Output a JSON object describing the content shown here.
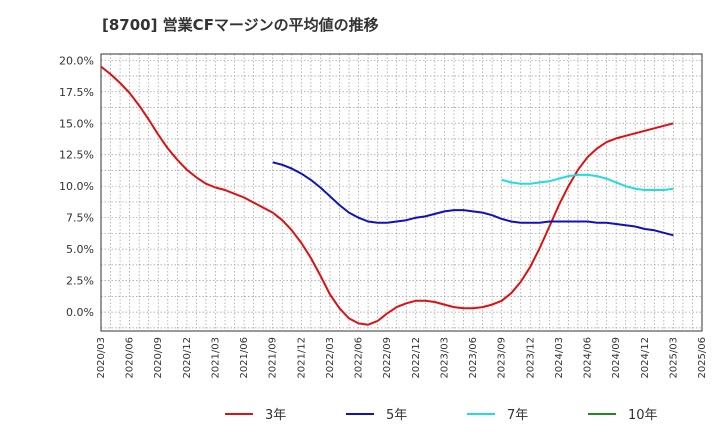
{
  "chart_data": {
    "type": "line",
    "title": "[8700]  営業CFマージンの平均値の推移",
    "xlabel": "",
    "ylabel": "",
    "ylim": [
      -1.5,
      20.5
    ],
    "y_ticks": [
      "20.0%",
      "17.5%",
      "15.0%",
      "12.5%",
      "10.0%",
      "7.5%",
      "5.0%",
      "2.5%",
      "0.0%"
    ],
    "y_tick_values": [
      20.0,
      17.5,
      15.0,
      12.5,
      10.0,
      7.5,
      5.0,
      2.5,
      0.0
    ],
    "x_ticks": [
      "2020/03",
      "2020/06",
      "2020/09",
      "2020/12",
      "2021/03",
      "2021/06",
      "2021/09",
      "2021/12",
      "2022/03",
      "2022/06",
      "2022/09",
      "2022/12",
      "2023/03",
      "2023/06",
      "2023/09",
      "2023/12",
      "2024/03",
      "2024/06",
      "2024/09",
      "2024/12",
      "2025/03",
      "2025/06"
    ],
    "grid": true,
    "legend_position": "bottom",
    "series": [
      {
        "name": "3年",
        "color": "#dd1111",
        "points": [
          [
            "2020/03",
            19.5
          ],
          [
            "2020/04",
            18.9
          ],
          [
            "2020/05",
            18.2
          ],
          [
            "2020/06",
            17.4
          ],
          [
            "2020/07",
            16.4
          ],
          [
            "2020/08",
            15.3
          ],
          [
            "2020/09",
            14.1
          ],
          [
            "2020/10",
            13.0
          ],
          [
            "2020/11",
            12.1
          ],
          [
            "2020/12",
            11.3
          ],
          [
            "2021/01",
            10.7
          ],
          [
            "2021/02",
            10.2
          ],
          [
            "2021/03",
            9.9
          ],
          [
            "2021/04",
            9.7
          ],
          [
            "2021/05",
            9.4
          ],
          [
            "2021/06",
            9.1
          ],
          [
            "2021/07",
            8.7
          ],
          [
            "2021/08",
            8.3
          ],
          [
            "2021/09",
            7.9
          ],
          [
            "2021/10",
            7.3
          ],
          [
            "2021/11",
            6.5
          ],
          [
            "2021/12",
            5.5
          ],
          [
            "2022/01",
            4.3
          ],
          [
            "2022/02",
            2.9
          ],
          [
            "2022/03",
            1.4
          ],
          [
            "2022/04",
            0.3
          ],
          [
            "2022/05",
            -0.5
          ],
          [
            "2022/06",
            -0.9
          ],
          [
            "2022/07",
            -1.0
          ],
          [
            "2022/08",
            -0.7
          ],
          [
            "2022/09",
            -0.1
          ],
          [
            "2022/10",
            0.4
          ],
          [
            "2022/11",
            0.7
          ],
          [
            "2022/12",
            0.9
          ],
          [
            "2023/01",
            0.9
          ],
          [
            "2023/02",
            0.8
          ],
          [
            "2023/03",
            0.6
          ],
          [
            "2023/04",
            0.4
          ],
          [
            "2023/05",
            0.3
          ],
          [
            "2023/06",
            0.3
          ],
          [
            "2023/07",
            0.4
          ],
          [
            "2023/08",
            0.6
          ],
          [
            "2023/09",
            0.9
          ],
          [
            "2023/10",
            1.5
          ],
          [
            "2023/11",
            2.4
          ],
          [
            "2023/12",
            3.6
          ],
          [
            "2024/01",
            5.1
          ],
          [
            "2024/02",
            6.8
          ],
          [
            "2024/03",
            8.5
          ],
          [
            "2024/04",
            10.0
          ],
          [
            "2024/05",
            11.3
          ],
          [
            "2024/06",
            12.3
          ],
          [
            "2024/07",
            13.0
          ],
          [
            "2024/08",
            13.5
          ],
          [
            "2024/09",
            13.8
          ],
          [
            "2024/10",
            14.0
          ],
          [
            "2024/11",
            14.2
          ],
          [
            "2024/12",
            14.4
          ],
          [
            "2025/01",
            14.6
          ],
          [
            "2025/02",
            14.8
          ],
          [
            "2025/03",
            15.0
          ]
        ]
      },
      {
        "name": "5年",
        "color": "#1111bb",
        "points": [
          [
            "2021/09",
            11.9
          ],
          [
            "2021/10",
            11.7
          ],
          [
            "2021/11",
            11.4
          ],
          [
            "2021/12",
            11.0
          ],
          [
            "2022/01",
            10.5
          ],
          [
            "2022/02",
            9.9
          ],
          [
            "2022/03",
            9.2
          ],
          [
            "2022/04",
            8.5
          ],
          [
            "2022/05",
            7.9
          ],
          [
            "2022/06",
            7.5
          ],
          [
            "2022/07",
            7.2
          ],
          [
            "2022/08",
            7.1
          ],
          [
            "2022/09",
            7.1
          ],
          [
            "2022/10",
            7.2
          ],
          [
            "2022/11",
            7.3
          ],
          [
            "2022/12",
            7.5
          ],
          [
            "2023/01",
            7.6
          ],
          [
            "2023/02",
            7.8
          ],
          [
            "2023/03",
            8.0
          ],
          [
            "2023/04",
            8.1
          ],
          [
            "2023/05",
            8.1
          ],
          [
            "2023/06",
            8.0
          ],
          [
            "2023/07",
            7.9
          ],
          [
            "2023/08",
            7.7
          ],
          [
            "2023/09",
            7.4
          ],
          [
            "2023/10",
            7.2
          ],
          [
            "2023/11",
            7.1
          ],
          [
            "2023/12",
            7.1
          ],
          [
            "2024/01",
            7.1
          ],
          [
            "2024/02",
            7.2
          ],
          [
            "2024/03",
            7.2
          ],
          [
            "2024/04",
            7.2
          ],
          [
            "2024/05",
            7.2
          ],
          [
            "2024/06",
            7.2
          ],
          [
            "2024/07",
            7.1
          ],
          [
            "2024/08",
            7.1
          ],
          [
            "2024/09",
            7.0
          ],
          [
            "2024/10",
            6.9
          ],
          [
            "2024/11",
            6.8
          ],
          [
            "2024/12",
            6.6
          ],
          [
            "2025/01",
            6.5
          ],
          [
            "2025/02",
            6.3
          ],
          [
            "2025/03",
            6.1
          ]
        ]
      },
      {
        "name": "7年",
        "color": "#22dddd",
        "points": [
          [
            "2023/09",
            10.5
          ],
          [
            "2023/10",
            10.3
          ],
          [
            "2023/11",
            10.2
          ],
          [
            "2023/12",
            10.2
          ],
          [
            "2024/01",
            10.3
          ],
          [
            "2024/02",
            10.4
          ],
          [
            "2024/03",
            10.6
          ],
          [
            "2024/04",
            10.8
          ],
          [
            "2024/05",
            10.9
          ],
          [
            "2024/06",
            10.9
          ],
          [
            "2024/07",
            10.8
          ],
          [
            "2024/08",
            10.6
          ],
          [
            "2024/09",
            10.3
          ],
          [
            "2024/10",
            10.0
          ],
          [
            "2024/11",
            9.8
          ],
          [
            "2024/12",
            9.7
          ],
          [
            "2025/01",
            9.7
          ],
          [
            "2025/02",
            9.7
          ],
          [
            "2025/03",
            9.8
          ]
        ]
      },
      {
        "name": "10年",
        "color": "#228822",
        "points": []
      }
    ]
  }
}
